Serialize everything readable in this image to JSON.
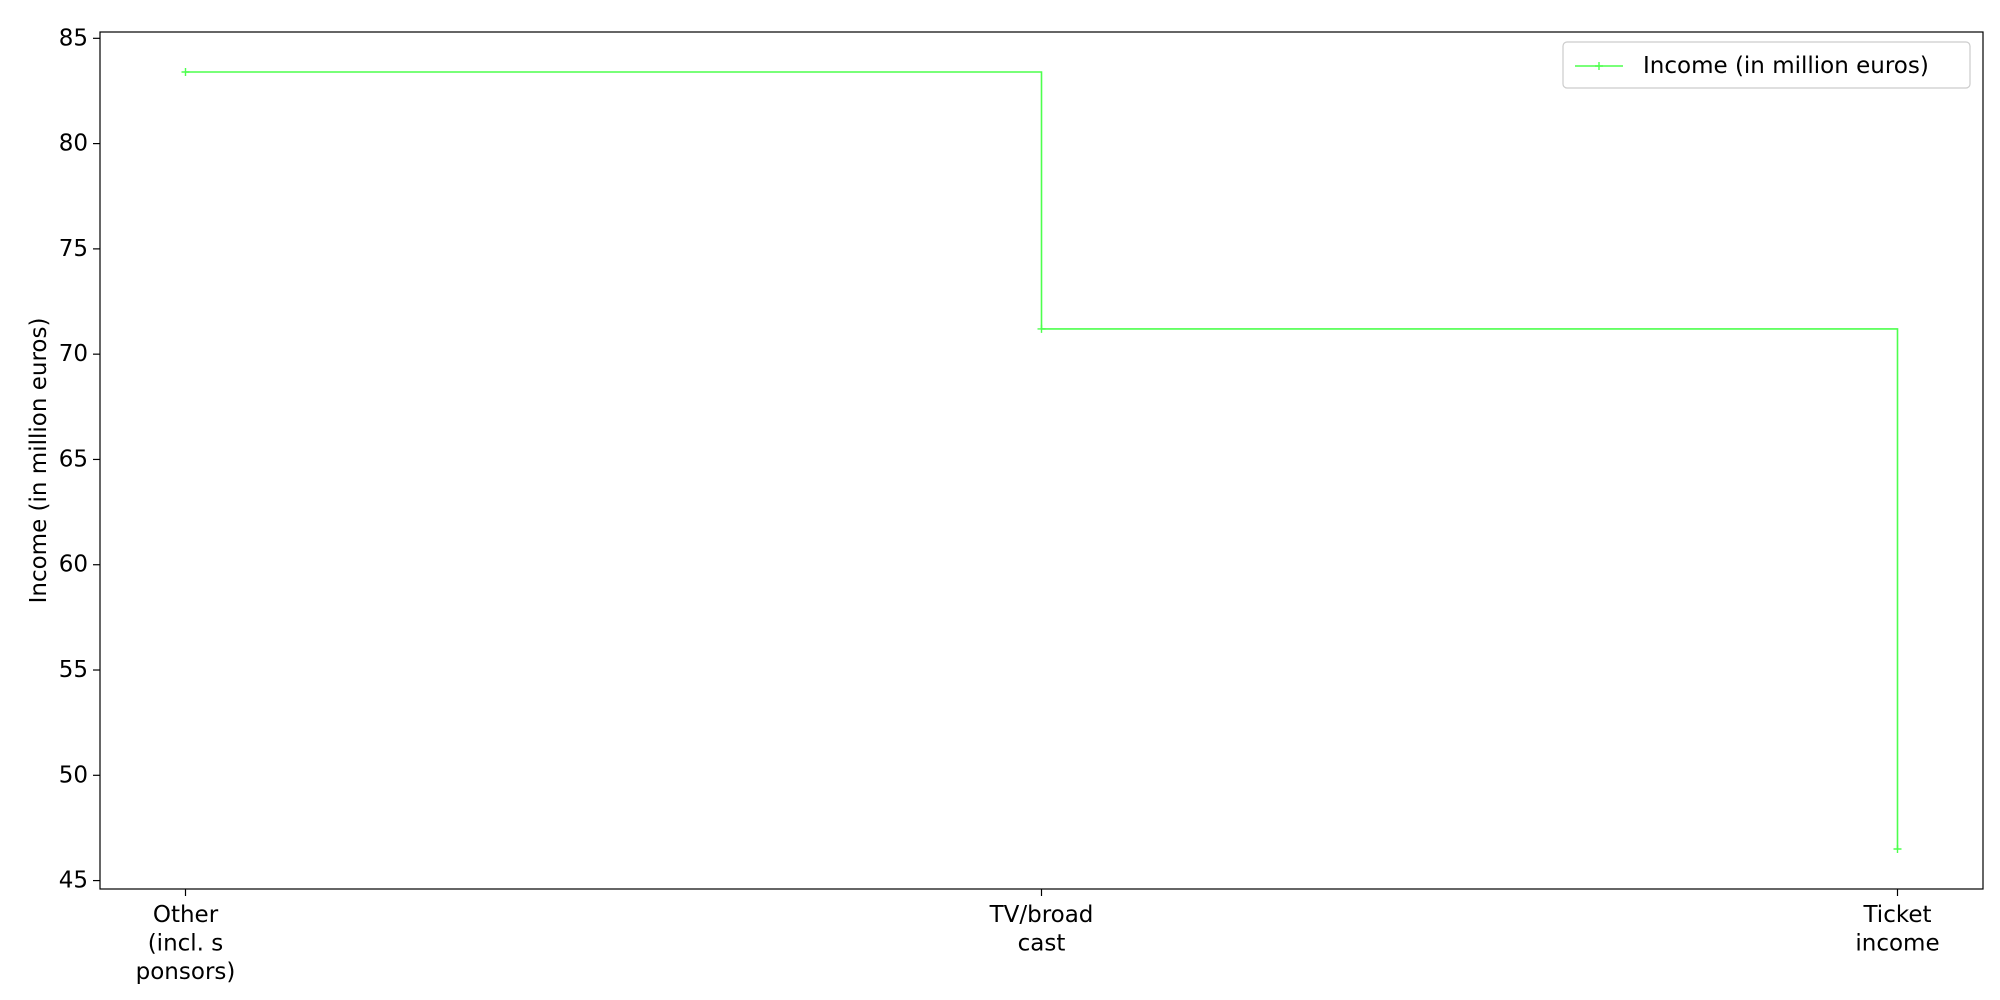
{
  "chart_data": {
    "type": "line",
    "drawstyle": "steps-post",
    "categories": [
      "Other\n(incl. s\nponsors)",
      "TV/broad\ncast",
      "Ticket\nincome"
    ],
    "series": [
      {
        "name": "Income (in million euros)",
        "values": [
          83.4,
          71.2,
          46.5
        ],
        "color": "#4dff4d",
        "marker": "+"
      }
    ],
    "title": "",
    "xlabel": "",
    "ylabel": "Income (in million euros)",
    "ylim": [
      44.6,
      85.3
    ],
    "yticks": [
      45,
      50,
      55,
      60,
      65,
      70,
      75,
      80,
      85
    ],
    "grid": false,
    "legend": "top-right"
  }
}
